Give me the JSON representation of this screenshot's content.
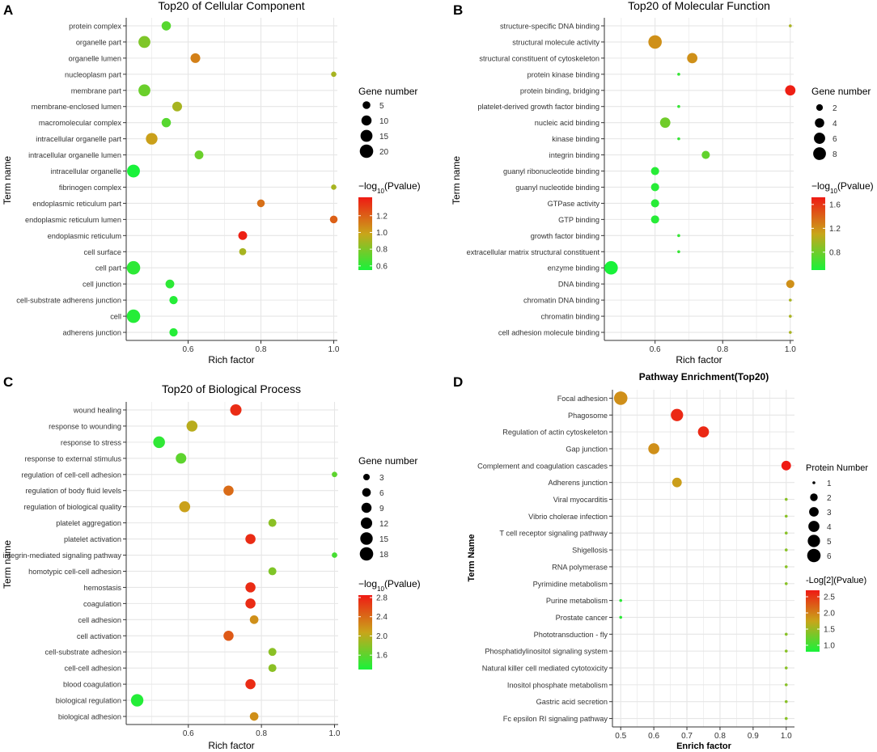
{
  "colors": {
    "panel_bg": "#ffffff",
    "grid": "#e6e6e6",
    "frame": "#333333",
    "scale_low": "#19f23a",
    "scale_mid": "#c9a51a",
    "scale_high": "#ef1a14"
  },
  "chart_data": [
    {
      "panel": "A",
      "type": "scatter",
      "title": "Top20 of Cellular Component",
      "title_bold": false,
      "xlabel": "Rich factor",
      "ylabel": "Term name",
      "xlim": [
        0.43,
        1.01
      ],
      "xticks": [
        0.6,
        0.8,
        1.0
      ],
      "xtick_labels": [
        "0.6",
        "0.8",
        "1.0"
      ],
      "terms": [
        "protein complex",
        "organelle part",
        "organelle lumen",
        "nucleoplasm part",
        "membrane part",
        "membrane-enclosed lumen",
        "macromolecular complex",
        "intracellular organelle part",
        "intracellular organelle lumen",
        "intracellular organelle",
        "fibrinogen complex",
        "endoplasmic reticulum part",
        "endoplasmic reticulum lumen",
        "endoplasmic reticulum",
        "cell surface",
        "cell part",
        "cell junction",
        "cell-substrate adherens junction",
        "cell",
        "adherens junction"
      ],
      "x": [
        0.54,
        0.48,
        0.62,
        1.0,
        0.48,
        0.57,
        0.54,
        0.5,
        0.63,
        0.45,
        1.0,
        0.8,
        1.0,
        0.75,
        0.75,
        0.45,
        0.55,
        0.56,
        0.45,
        0.56
      ],
      "size": [
        8,
        15,
        9,
        2,
        15,
        9,
        8,
        14,
        7,
        18,
        2,
        5,
        5,
        7,
        4,
        20,
        7,
        6,
        20,
        6
      ],
      "pvalue": [
        0.7,
        0.8,
        1.1,
        0.9,
        0.75,
        0.9,
        0.7,
        1.0,
        0.75,
        0.55,
        0.9,
        1.15,
        1.2,
        1.4,
        0.9,
        0.6,
        0.6,
        0.58,
        0.58,
        0.58
      ],
      "size_legend_title": "Gene number",
      "size_legend": [
        5,
        10,
        15,
        20
      ],
      "size_range": [
        1,
        20
      ],
      "color_legend_title_pre": "−log",
      "color_legend_title_sub": "10",
      "color_legend_title_post": "(Pvalue)",
      "color_range": [
        0.55,
        1.42
      ],
      "color_ticks": [
        0.6,
        0.8,
        1.0,
        1.2
      ],
      "color_tick_labels": [
        "0.6",
        "0.8",
        "1.0",
        "1.2"
      ]
    },
    {
      "panel": "B",
      "type": "scatter",
      "title": "Top20 of Molecular Function",
      "title_bold": false,
      "xlabel": "Rich factor",
      "ylabel": "Term name",
      "xlim": [
        0.45,
        1.01
      ],
      "xticks": [
        0.6,
        0.8,
        1.0
      ],
      "xtick_labels": [
        "0.6",
        "0.8",
        "1.0"
      ],
      "terms": [
        "structure-specific DNA binding",
        "structural molecule activity",
        "structural constituent of cytoskeleton",
        "protein kinase binding",
        "protein binding, bridging",
        "platelet-derived growth factor binding",
        "nucleic acid binding",
        "kinase binding",
        "integrin binding",
        "guanyl ribonucleotide binding",
        "guanyl nucleotide binding",
        "GTPase activity",
        "GTP binding",
        "growth factor binding",
        "extracellular matrix structural constituent",
        "enzyme binding",
        "DNA binding",
        "chromatin DNA binding",
        "chromatin binding",
        "cell adhesion molecule binding"
      ],
      "x": [
        1.0,
        0.6,
        0.71,
        0.67,
        1.0,
        0.67,
        0.63,
        0.67,
        0.75,
        0.6,
        0.6,
        0.6,
        0.6,
        0.67,
        0.67,
        0.47,
        1.0,
        1.0,
        1.0,
        1.0
      ],
      "size": [
        1,
        9,
        5,
        1,
        5,
        1,
        5,
        1,
        3,
        3,
        3,
        3,
        3,
        1,
        1,
        9,
        3,
        1,
        1,
        1
      ],
      "pvalue": [
        1.0,
        1.2,
        1.2,
        0.6,
        1.7,
        0.6,
        0.8,
        0.6,
        0.75,
        0.55,
        0.55,
        0.55,
        0.55,
        0.6,
        0.6,
        0.5,
        1.2,
        1.0,
        1.0,
        1.0
      ],
      "size_legend_title": "Gene number",
      "size_legend": [
        2,
        4,
        6,
        8
      ],
      "size_range": [
        1,
        9
      ],
      "color_legend_title_pre": "−log",
      "color_legend_title_sub": "10",
      "color_legend_title_post": "(Pvalue)",
      "color_range": [
        0.5,
        1.72
      ],
      "color_ticks": [
        0.8,
        1.2,
        1.6
      ],
      "color_tick_labels": [
        "0.8",
        "1.2",
        "1.6"
      ]
    },
    {
      "panel": "C",
      "type": "scatter",
      "title": "Top20 of Biological Process",
      "title_bold": false,
      "xlabel": "Rich factor",
      "ylabel": "Term name",
      "xlim": [
        0.43,
        1.01
      ],
      "xticks": [
        0.6,
        0.8,
        1.0
      ],
      "xtick_labels": [
        "0.6",
        "0.8",
        "1.0"
      ],
      "terms": [
        "wound healing",
        "response to wounding",
        "response to stress",
        "response to external stimulus",
        "regulation of cell-cell adhesion",
        "regulation of body fluid levels",
        "regulation of biological quality",
        "platelet aggregation",
        "platelet activation",
        "integrin-mediated signaling pathway",
        "homotypic cell-cell adhesion",
        "hemostasis",
        "coagulation",
        "cell adhesion",
        "cell activation",
        "cell-substrate adhesion",
        "cell-cell adhesion",
        "blood coagulation",
        "biological regulation",
        "biological adhesion"
      ],
      "x": [
        0.73,
        0.61,
        0.52,
        0.58,
        1.0,
        0.71,
        0.59,
        0.83,
        0.77,
        1.0,
        0.83,
        0.77,
        0.77,
        0.78,
        0.71,
        0.83,
        0.83,
        0.77,
        0.46,
        0.78
      ],
      "size": [
        12,
        11,
        13,
        10,
        2,
        9,
        11,
        5,
        9,
        2,
        5,
        9,
        9,
        6,
        9,
        5,
        5,
        9,
        15,
        6
      ],
      "pvalue": [
        2.75,
        2.0,
        1.4,
        1.6,
        1.6,
        2.4,
        2.1,
        1.8,
        2.75,
        1.5,
        1.75,
        2.75,
        2.75,
        2.2,
        2.5,
        1.8,
        1.8,
        2.75,
        1.35,
        2.2
      ],
      "size_legend_title": "Gene number",
      "size_legend": [
        3,
        6,
        9,
        12,
        15,
        18
      ],
      "size_range": [
        1,
        18
      ],
      "color_legend_title_pre": "−log",
      "color_legend_title_sub": "10",
      "color_legend_title_post": "(Pvalue)",
      "color_range": [
        1.3,
        2.85
      ],
      "color_ticks": [
        1.6,
        2.0,
        2.4,
        2.8
      ],
      "color_tick_labels": [
        "1.6",
        "2.0",
        "2.4",
        "2.8"
      ]
    },
    {
      "panel": "D",
      "type": "scatter",
      "title": "Pathway Enrichment(Top20)",
      "title_bold": true,
      "xlabel": "Enrich factor",
      "ylabel": "Term Name",
      "xlim": [
        0.475,
        1.025
      ],
      "xticks": [
        0.5,
        0.6,
        0.7,
        0.8,
        0.9,
        1.0
      ],
      "xtick_labels": [
        "0.5",
        "0.6",
        "0.7",
        "0.8",
        "0.9",
        "1.0"
      ],
      "terms": [
        "Focal adhesion",
        "Phagosome",
        "Regulation of actin cytoskeleton",
        "Gap junction",
        "Complement and coagulation cascades",
        "Adherens junction",
        "Viral myocarditis",
        "Vibrio cholerae infection",
        "T cell receptor signaling pathway",
        "Shigellosis",
        "RNA polymerase",
        "Pyrimidine metabolism",
        "Purine metabolism",
        "Prostate cancer",
        "Phototransduction - fly",
        "Phosphatidylinositol signaling system",
        "Natural killer cell mediated cytotoxicity",
        "Inositol phosphate metabolism",
        "Gastric acid secretion",
        "Fc epsilon RI signaling pathway"
      ],
      "x": [
        0.5,
        0.67,
        0.75,
        0.6,
        1.0,
        0.67,
        1.0,
        1.0,
        1.0,
        1.0,
        1.0,
        1.0,
        0.5,
        0.5,
        1.0,
        1.0,
        1.0,
        1.0,
        1.0,
        1.0
      ],
      "size": [
        6,
        5,
        4,
        4,
        3,
        3,
        1,
        1,
        1,
        1,
        1,
        1,
        1,
        1,
        1,
        1,
        1,
        1,
        1,
        1
      ],
      "pvalue": [
        1.9,
        2.6,
        2.6,
        1.9,
        2.7,
        1.8,
        1.4,
        1.4,
        1.4,
        1.4,
        1.4,
        1.4,
        0.9,
        0.9,
        1.4,
        1.4,
        1.4,
        1.4,
        1.4,
        1.4
      ],
      "size_legend_title": "Protein Number",
      "size_legend": [
        1,
        2,
        3,
        4,
        5,
        6
      ],
      "size_range": [
        1,
        6
      ],
      "color_legend_title_pre": "-Log[2](Pvalue)",
      "color_legend_title_sub": "",
      "color_legend_title_post": "",
      "color_range": [
        0.8,
        2.7
      ],
      "color_ticks": [
        1.0,
        1.5,
        2.0,
        2.5
      ],
      "color_tick_labels": [
        "1.0",
        "1.5",
        "2.0",
        "2.5"
      ]
    }
  ]
}
